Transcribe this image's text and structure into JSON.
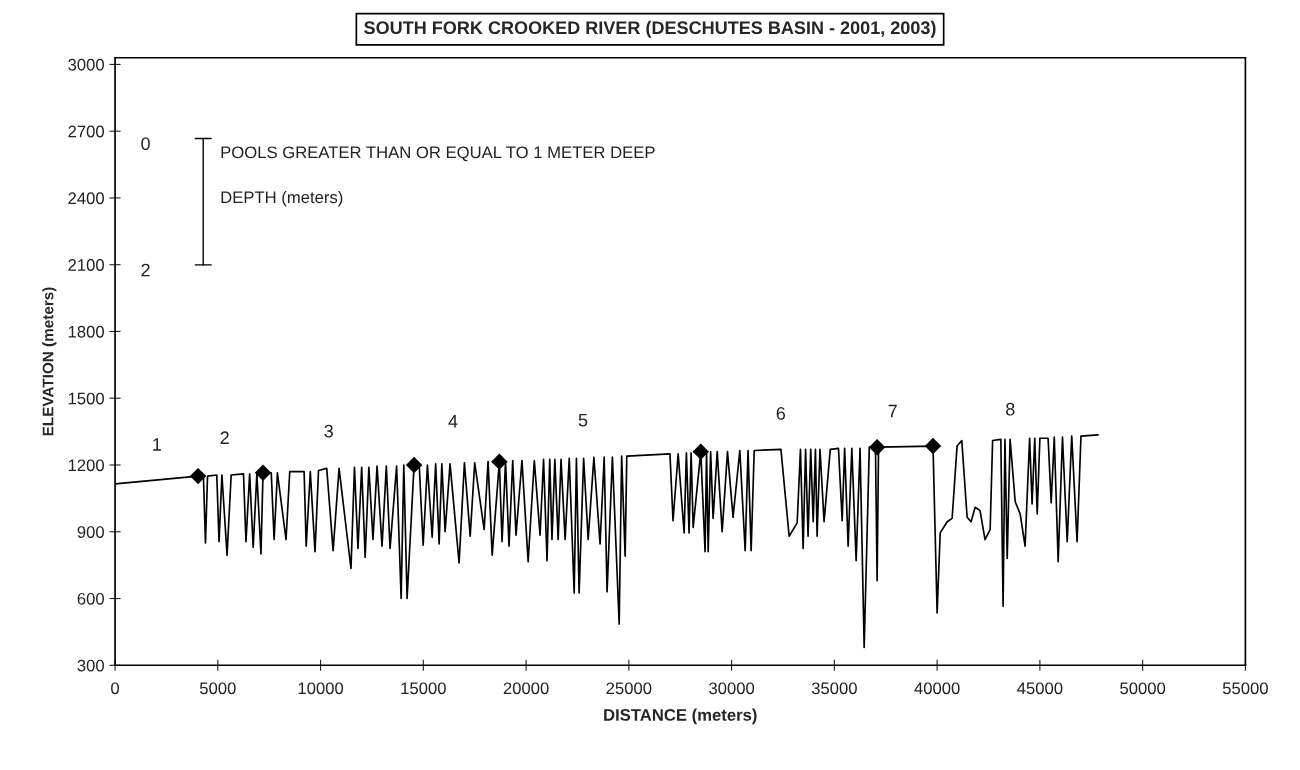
{
  "chart_data": {
    "type": "line",
    "title": "SOUTH FORK CROOKED RIVER (DESCHUTES BASIN - 2001, 2003)",
    "xlabel": "DISTANCE (meters)",
    "ylabel": "ELEVATION (meters)",
    "xlim": [
      0,
      55000
    ],
    "xticks": [
      0,
      5000,
      10000,
      15000,
      20000,
      25000,
      30000,
      35000,
      40000,
      45000,
      50000,
      55000
    ],
    "ylim": [
      300,
      3030
    ],
    "yticks": [
      300,
      600,
      900,
      1200,
      1500,
      1800,
      2100,
      2400,
      2700,
      3000
    ],
    "grid": false,
    "legend": false,
    "series": [
      {
        "color": "#000000",
        "marker": "none",
        "line_style": "solid",
        "x": [
          0,
          4040,
          4300,
          4400,
          4500,
          4950,
          5060,
          5200,
          5450,
          5650,
          6250,
          6370,
          6550,
          6720,
          6900,
          7100,
          7200,
          7600,
          7740,
          7900,
          8320,
          8500,
          9200,
          9300,
          9500,
          9730,
          9900,
          10300,
          10610,
          10900,
          11480,
          11650,
          11820,
          12000,
          12170,
          12350,
          12550,
          12750,
          12990,
          13200,
          13380,
          13700,
          13920,
          14050,
          14210,
          14550,
          14800,
          14990,
          15200,
          15430,
          15600,
          15770,
          15900,
          16060,
          16300,
          16740,
          17000,
          17280,
          17500,
          17960,
          18150,
          18350,
          18700,
          18830,
          19000,
          19170,
          19350,
          19510,
          19800,
          20100,
          20400,
          20680,
          20850,
          21020,
          21150,
          21260,
          21400,
          21560,
          21700,
          21900,
          22100,
          22340,
          22450,
          22580,
          22800,
          23020,
          23300,
          23600,
          23800,
          23940,
          24200,
          24530,
          24650,
          24820,
          24900,
          27000,
          27150,
          27400,
          27690,
          27800,
          27930,
          28030,
          28130,
          28500,
          28710,
          28780,
          28860,
          28980,
          29100,
          29300,
          29540,
          29800,
          30070,
          30400,
          30660,
          30800,
          30950,
          31100,
          32400,
          32800,
          33190,
          33350,
          33480,
          33600,
          33720,
          33850,
          33970,
          34080,
          34160,
          34300,
          34500,
          34800,
          35200,
          35380,
          35500,
          35670,
          35850,
          36060,
          36250,
          36450,
          36700,
          37000,
          37080,
          37150,
          39800,
          40000,
          40150,
          40490,
          40730,
          40970,
          41200,
          41460,
          41650,
          41850,
          42090,
          42330,
          42580,
          42700,
          43100,
          43210,
          43300,
          43410,
          43550,
          43800,
          44040,
          44280,
          44500,
          44620,
          44750,
          44870,
          45000,
          45400,
          45550,
          45700,
          45890,
          46100,
          46330,
          46550,
          46810,
          47000,
          47830
        ],
        "values": [
          1115,
          1150,
          1150,
          850,
          1150,
          1155,
          855,
          1155,
          795,
          1155,
          1160,
          855,
          1160,
          830,
          1160,
          800,
          1165,
          1165,
          865,
          1165,
          865,
          1170,
          1170,
          835,
          1170,
          810,
          1175,
          1185,
          815,
          1185,
          735,
          1190,
          825,
          1190,
          785,
          1190,
          865,
          1195,
          835,
          1195,
          825,
          1195,
          600,
          1200,
          600,
          1200,
          1200,
          840,
          1200,
          875,
          1205,
          845,
          1205,
          900,
          1205,
          760,
          1210,
          880,
          1210,
          910,
          1215,
          795,
          1215,
          855,
          1215,
          835,
          1220,
          885,
          1220,
          765,
          1220,
          885,
          1225,
          770,
          1225,
          865,
          1225,
          865,
          1225,
          865,
          1230,
          625,
          1230,
          625,
          1230,
          865,
          1235,
          845,
          1235,
          630,
          1235,
          485,
          1240,
          790,
          1240,
          1250,
          950,
          1250,
          895,
          1255,
          895,
          1255,
          920,
          1260,
          810,
          1260,
          810,
          1260,
          960,
          1260,
          900,
          1260,
          965,
          1265,
          815,
          1265,
          815,
          1265,
          1270,
          880,
          940,
          1270,
          825,
          1270,
          880,
          1270,
          945,
          1270,
          880,
          1270,
          945,
          1270,
          1275,
          950,
          1275,
          835,
          1275,
          770,
          1275,
          380,
          1280,
          1280,
          680,
          1280,
          1285,
          535,
          895,
          945,
          960,
          1285,
          1310,
          965,
          945,
          1010,
          995,
          865,
          910,
          1310,
          1315,
          565,
          1315,
          780,
          1315,
          1035,
          980,
          835,
          1320,
          1025,
          1320,
          980,
          1320,
          1320,
          1030,
          1325,
          765,
          1325,
          855,
          1330,
          855,
          1330,
          1335
        ]
      },
      {
        "type": "scatter",
        "color": "#000000",
        "marker": "diamond",
        "x": [
          4040,
          7200,
          14550,
          18700,
          28500,
          37080,
          39800
        ],
        "values": [
          1150,
          1165,
          1200,
          1215,
          1260,
          1280,
          1285
        ]
      }
    ],
    "annotations": [
      "1",
      "2",
      "3",
      "4",
      "5",
      "6",
      "7",
      "8",
      "0",
      "2",
      "POOLS GREATER THAN OR EQUAL TO 1 METER DEEP",
      "DEPTH (meters)"
    ]
  }
}
